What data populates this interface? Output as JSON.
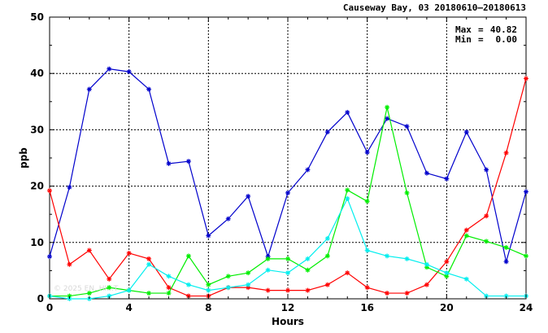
{
  "chart_data": {
    "type": "line",
    "title": "Causeway Bay, 03 20180610–20180613",
    "xlabel": "Hours",
    "ylabel": "ppb",
    "xlim": [
      0,
      24
    ],
    "ylim": [
      0,
      50
    ],
    "xticks": [
      0,
      4,
      8,
      12,
      16,
      20,
      24
    ],
    "yticks": [
      0,
      10,
      20,
      30,
      40,
      50
    ],
    "grid": true,
    "stats": {
      "max_label": "Max",
      "max_value": "40.82",
      "min_label": "Min",
      "min_value": "0.00"
    },
    "watermark": "© 2025 EN..HI...T",
    "x": [
      0,
      1,
      2,
      3,
      4,
      5,
      6,
      7,
      8,
      9,
      10,
      11,
      12,
      13,
      14,
      15,
      16,
      17,
      18,
      19,
      20,
      21,
      22,
      23,
      24
    ],
    "series": [
      {
        "color": "#0000cc",
        "values": [
          7.5,
          19.8,
          37.2,
          40.8,
          40.3,
          37.2,
          24.0,
          24.4,
          11.2,
          14.2,
          18.2,
          7.5,
          18.8,
          22.9,
          29.6,
          33.1,
          26.0,
          32.0,
          30.6,
          22.3,
          21.3,
          29.6,
          22.9,
          6.6,
          19.0
        ]
      },
      {
        "color": "#ff0000",
        "values": [
          19.2,
          6.1,
          8.6,
          3.5,
          8.1,
          7.1,
          2.0,
          0.5,
          0.5,
          2.0,
          2.0,
          1.5,
          1.5,
          1.5,
          2.5,
          4.6,
          2.0,
          1.0,
          1.0,
          2.5,
          6.6,
          12.2,
          14.7,
          25.9,
          39.1
        ]
      },
      {
        "color": "#00ee00",
        "values": [
          0.5,
          0.5,
          1.0,
          2.0,
          1.5,
          1.0,
          1.0,
          7.6,
          2.5,
          4.0,
          4.6,
          7.1,
          7.1,
          5.1,
          7.6,
          19.3,
          17.3,
          34.0,
          18.8,
          5.6,
          4.0,
          11.2,
          10.2,
          9.1,
          7.6
        ]
      },
      {
        "color": "#00eeee",
        "values": [
          0.5,
          0.0,
          0.0,
          0.5,
          1.5,
          6.1,
          4.0,
          2.5,
          1.5,
          2.0,
          2.5,
          5.1,
          4.6,
          7.1,
          10.7,
          17.8,
          8.6,
          7.6,
          7.1,
          6.1,
          4.6,
          3.5,
          0.5,
          0.5,
          0.5
        ]
      }
    ]
  }
}
